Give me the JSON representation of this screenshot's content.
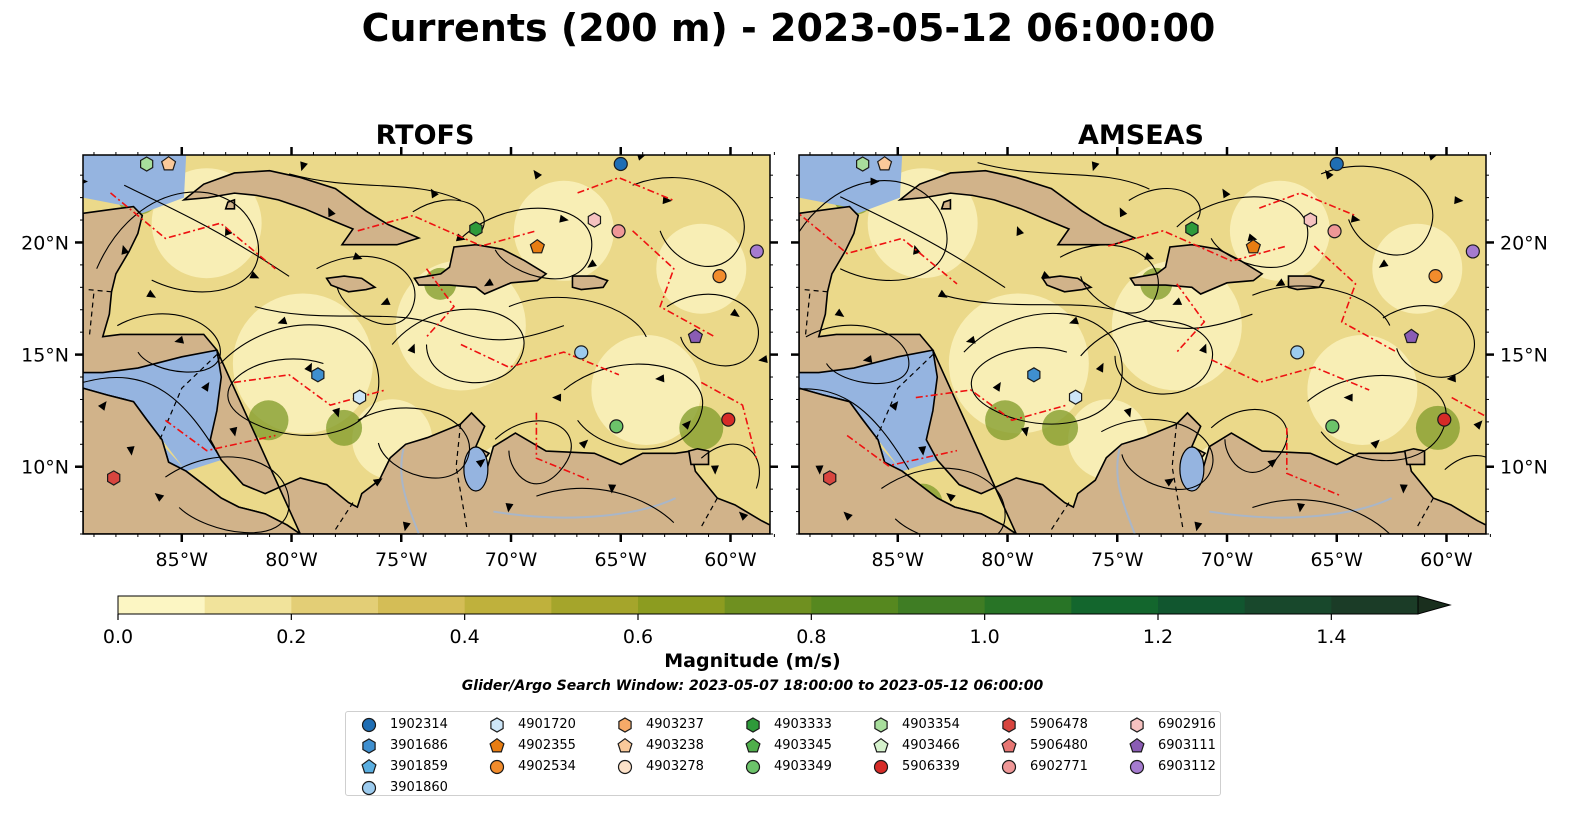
{
  "title": "Currents (200 m) - 2023-05-12 06:00:00",
  "panels": [
    {
      "title": "RTOFS"
    },
    {
      "title": "AMSEAS"
    }
  ],
  "axes": {
    "lon_ticks": [
      "85°W",
      "80°W",
      "75°W",
      "70°W",
      "65°W",
      "60°W"
    ],
    "lon_values": [
      -85,
      -80,
      -75,
      -70,
      -65,
      -60
    ],
    "lat_ticks": [
      "20°N",
      "15°N",
      "10°N"
    ],
    "lat_values": [
      20,
      15,
      10
    ],
    "lon_range": [
      -89.5,
      -58.2
    ],
    "lat_range": [
      7.0,
      23.9
    ]
  },
  "colorbar": {
    "label": "Magnitude (m/s)",
    "tick_labels": [
      "0.0",
      "0.2",
      "0.4",
      "0.6",
      "0.8",
      "1.0",
      "1.2",
      "1.4"
    ],
    "tick_values": [
      0.0,
      0.2,
      0.4,
      0.6,
      0.8,
      1.0,
      1.2,
      1.4
    ],
    "range": [
      0.0,
      1.5
    ],
    "extend": "max",
    "colors": [
      "#fcf6c3",
      "#f1e39b",
      "#e3ce76",
      "#d4bd56",
      "#bfb13c",
      "#a5a52b",
      "#8c9c20",
      "#6f9020",
      "#56881f",
      "#3f7d24",
      "#287426",
      "#13662d",
      "#11562f",
      "#18482c",
      "#1b3c27",
      "#1a2f1e"
    ]
  },
  "search_window": "Glider/Argo Search Window: 2023-05-07 18:00:00 to 2023-05-12 06:00:00",
  "legend": {
    "columns": [
      [
        {
          "id": "1902314",
          "marker": "circle",
          "color": "#1f6eb4"
        },
        {
          "id": "3901686",
          "marker": "hexagon",
          "color": "#3f8fcf"
        },
        {
          "id": "3901859",
          "marker": "pentagon",
          "color": "#5aaee0"
        },
        {
          "id": "3901860",
          "marker": "circle",
          "color": "#9ccbee"
        }
      ],
      [
        {
          "id": "4901720",
          "marker": "hexagon",
          "color": "#cde6f8"
        },
        {
          "id": "4902355",
          "marker": "pentagon",
          "color": "#e87d12"
        },
        {
          "id": "4902534",
          "marker": "circle",
          "color": "#f28c2c"
        }
      ],
      [
        {
          "id": "4903237",
          "marker": "hexagon",
          "color": "#f6aa68"
        },
        {
          "id": "4903238",
          "marker": "pentagon",
          "color": "#f9c99a"
        },
        {
          "id": "4903278",
          "marker": "circle",
          "color": "#fde2c9"
        }
      ],
      [
        {
          "id": "4903333",
          "marker": "hexagon",
          "color": "#2e9a3a"
        },
        {
          "id": "4903345",
          "marker": "pentagon",
          "color": "#4fae4b"
        },
        {
          "id": "4903349",
          "marker": "circle",
          "color": "#6cc36a"
        }
      ],
      [
        {
          "id": "4903354",
          "marker": "hexagon",
          "color": "#a8de9c"
        },
        {
          "id": "4903466",
          "marker": "pentagon",
          "color": "#d6f2cd"
        },
        {
          "id": "5906339",
          "marker": "circle",
          "color": "#d62b27"
        }
      ],
      [
        {
          "id": "5906478",
          "marker": "hexagon",
          "color": "#d8453f"
        },
        {
          "id": "5906480",
          "marker": "pentagon",
          "color": "#e77673"
        },
        {
          "id": "6902771",
          "marker": "circle",
          "color": "#ef9797"
        }
      ],
      [
        {
          "id": "6902916",
          "marker": "hexagon",
          "color": "#f6c2c0"
        },
        {
          "id": "6903111",
          "marker": "pentagon",
          "color": "#8a5cb4"
        },
        {
          "id": "6903112",
          "marker": "circle",
          "color": "#a57bcf"
        }
      ]
    ]
  },
  "floats": [
    {
      "id": "1902314",
      "lon": -65.0,
      "lat": 23.5
    },
    {
      "id": "3901686",
      "lon": -78.8,
      "lat": 14.1
    },
    {
      "id": "3901860",
      "lon": -66.8,
      "lat": 15.1
    },
    {
      "id": "4901720",
      "lon": -76.9,
      "lat": 13.1
    },
    {
      "id": "4902355",
      "lon": -68.8,
      "lat": 19.8
    },
    {
      "id": "4902534",
      "lon": -60.5,
      "lat": 18.5
    },
    {
      "id": "4903238",
      "lon": -85.6,
      "lat": 23.5
    },
    {
      "id": "4903333",
      "lon": -71.6,
      "lat": 20.6
    },
    {
      "id": "4903349",
      "lon": -65.2,
      "lat": 11.8
    },
    {
      "id": "4903354",
      "lon": -86.6,
      "lat": 23.5
    },
    {
      "id": "5906339",
      "lon": -60.1,
      "lat": 12.1
    },
    {
      "id": "5906478",
      "lon": -88.1,
      "lat": 9.5
    },
    {
      "id": "6902771",
      "lon": -65.1,
      "lat": 20.5
    },
    {
      "id": "6902916",
      "lon": -66.2,
      "lat": 21.0
    },
    {
      "id": "6903111",
      "lon": -61.6,
      "lat": 15.8
    },
    {
      "id": "6903112",
      "lon": -58.8,
      "lat": 19.6
    }
  ]
}
